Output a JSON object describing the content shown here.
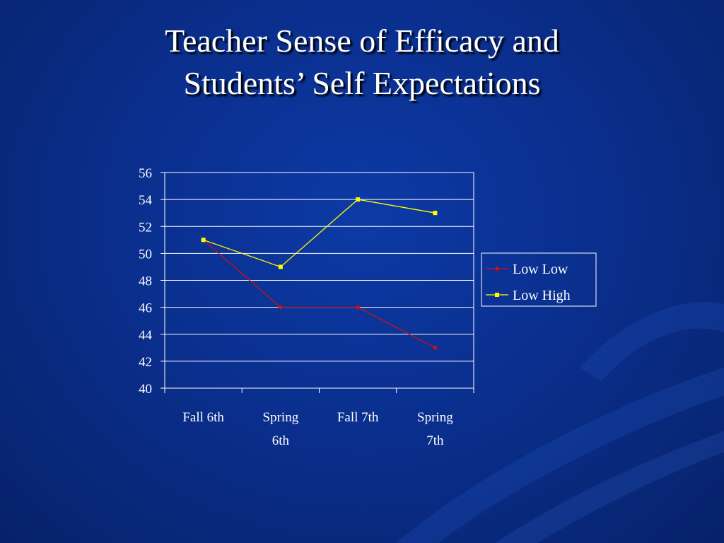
{
  "slide": {
    "title_line1": "Teacher Sense of Efficacy and",
    "title_line2": "Students’ Self Expectations"
  },
  "colors": {
    "background": "#0a2f8e",
    "axis": "#ffffff",
    "grid": "#ffffff",
    "low_low": "#d01010",
    "low_high": "#ffff00"
  },
  "chart_data": {
    "type": "line",
    "categories": [
      [
        "Fall 6th"
      ],
      [
        "Spring",
        "6th"
      ],
      [
        "Fall 7th"
      ],
      [
        "Spring",
        "7th"
      ]
    ],
    "series": [
      {
        "name": "Low Low",
        "values": [
          51,
          46,
          46,
          43
        ],
        "color": "#d01010",
        "marker": "diamond"
      },
      {
        "name": "Low High",
        "values": [
          51,
          49,
          54,
          53
        ],
        "color": "#ffff00",
        "marker": "square"
      }
    ],
    "ylim": [
      40,
      56
    ],
    "yticks": [
      40,
      42,
      44,
      46,
      48,
      50,
      52,
      54,
      56
    ],
    "grid": true,
    "legend": "right"
  }
}
